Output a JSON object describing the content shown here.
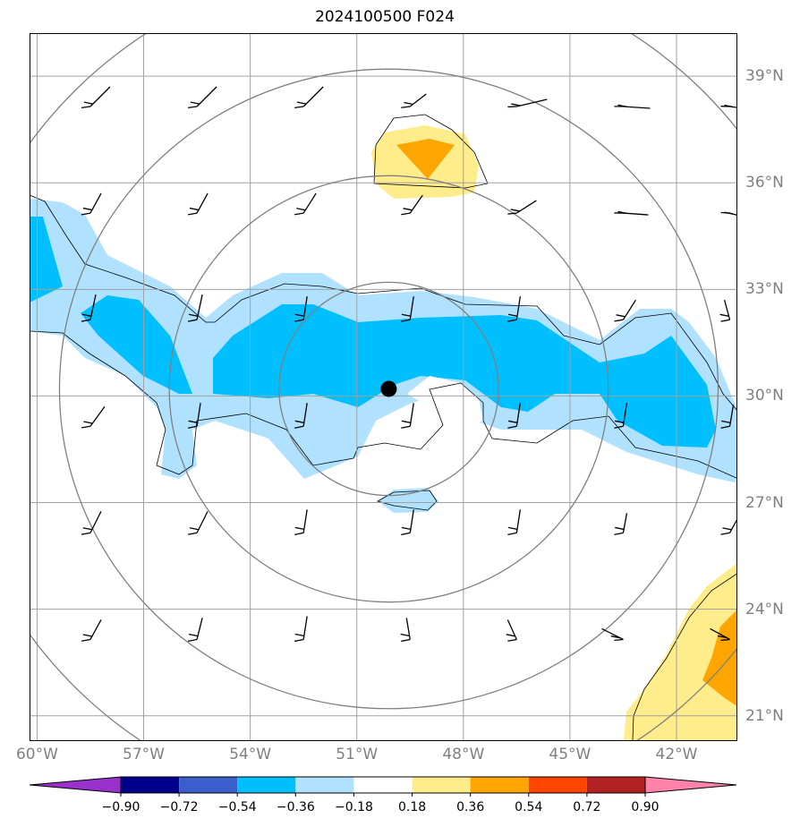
{
  "title": "2024100500 F024",
  "map": {
    "lon_range": [
      -60.2,
      -40.3
    ],
    "lat_range": [
      20.3,
      40.2
    ],
    "lon_ticks": [
      -60,
      -57,
      -54,
      -51,
      -48,
      -45,
      -42
    ],
    "lat_ticks": [
      21,
      24,
      27,
      30,
      33,
      36,
      39
    ],
    "lon_labels": [
      "60°W",
      "57°W",
      "54°W",
      "51°W",
      "48°W",
      "45°W",
      "42°W"
    ],
    "lat_labels": [
      "39°N",
      "36°N",
      "33°N",
      "30°N",
      "27°N",
      "24°N",
      "21°N"
    ],
    "grid": true,
    "storm_center": {
      "lon": -50.1,
      "lat": 30.2
    },
    "range_rings_deg": [
      3,
      6,
      9,
      12
    ],
    "ring_color": "#808080"
  },
  "colorbar": {
    "levels": [
      "−0.90",
      "−0.72",
      "−0.54",
      "−0.36",
      "−0.18",
      "0.18",
      "0.36",
      "0.54",
      "0.72",
      "0.90"
    ],
    "colors": [
      "#9932CC",
      "#00008B",
      "#3A5FCD",
      "#00BFFF",
      "#B0E2FF",
      "#FFFFFF",
      "#FFEC8B",
      "#FFA500",
      "#FF4500",
      "#B22222",
      "#FF82AB"
    ],
    "extend": "both"
  }
}
